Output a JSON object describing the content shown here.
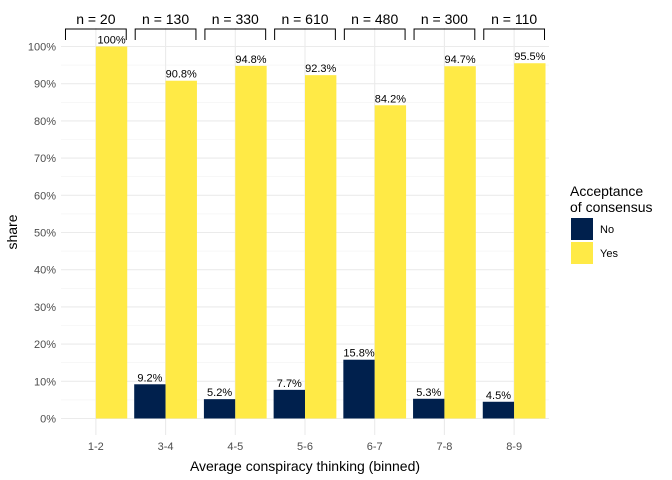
{
  "chart_data": {
    "type": "bar",
    "categories": [
      "1-2",
      "3-4",
      "4-5",
      "5-6",
      "6-7",
      "7-8",
      "8-9"
    ],
    "series": [
      {
        "name": "No",
        "color": "#00204D",
        "values": [
          null,
          9.2,
          5.2,
          7.7,
          15.8,
          5.3,
          4.5
        ]
      },
      {
        "name": "Yes",
        "color": "#FFEA46",
        "values": [
          100,
          90.8,
          94.8,
          92.3,
          84.2,
          94.7,
          95.5
        ]
      }
    ],
    "data_labels": {
      "No": [
        null,
        "9.2%",
        "5.2%",
        "7.7%",
        "15.8%",
        "5.3%",
        "4.5%"
      ],
      "Yes": [
        "100%",
        "90.8%",
        "94.8%",
        "92.3%",
        "84.2%",
        "94.7%",
        "95.5%"
      ]
    },
    "group_annotations": [
      "n = 20",
      "n = 130",
      "n = 330",
      "n = 610",
      "n = 480",
      "n = 300",
      "n = 110"
    ],
    "xlabel": "Average conspiracy thinking (binned)",
    "ylabel": "share",
    "ylim": [
      0,
      100
    ],
    "yticks": [
      0,
      10,
      20,
      30,
      40,
      50,
      60,
      70,
      80,
      90,
      100
    ],
    "ytick_labels": [
      "0%",
      "10%",
      "20%",
      "30%",
      "40%",
      "50%",
      "60%",
      "70%",
      "80%",
      "90%",
      "100%"
    ],
    "legend": {
      "title_lines": [
        "Acceptance",
        "of consensus"
      ],
      "entries": [
        "No",
        "Yes"
      ],
      "position": "right"
    },
    "grid": true
  }
}
